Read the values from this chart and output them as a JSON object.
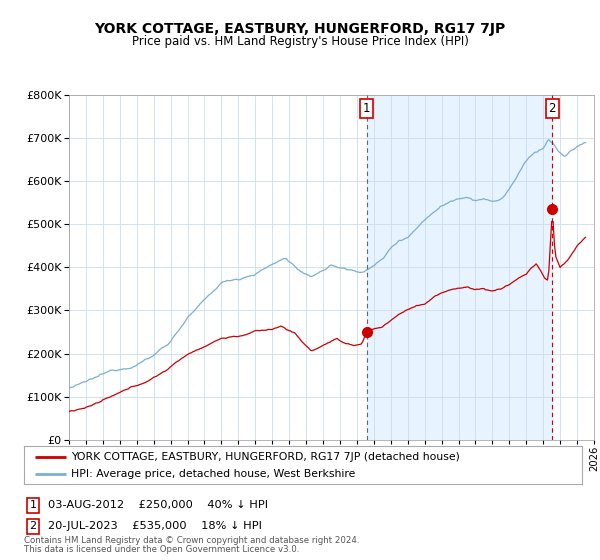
{
  "title": "YORK COTTAGE, EASTBURY, HUNGERFORD, RG17 7JP",
  "subtitle": "Price paid vs. HM Land Registry's House Price Index (HPI)",
  "ylim": [
    0,
    800000
  ],
  "xlim_start": 1995,
  "xlim_end": 2026,
  "hpi_color": "#7bafd4",
  "hpi_fill_color": "#ddeeff",
  "price_color": "#cc0000",
  "marker1_date": 2012.58,
  "marker1_price": 250000,
  "marker2_date": 2023.54,
  "marker2_price": 535000,
  "legend_line1": "YORK COTTAGE, EASTBURY, HUNGERFORD, RG17 7JP (detached house)",
  "legend_line2": "HPI: Average price, detached house, West Berkshire",
  "marker1_text": "03-AUG-2012    £250,000    40% ↓ HPI",
  "marker2_text": "20-JUL-2023    £535,000    18% ↓ HPI",
  "footer1": "Contains HM Land Registry data © Crown copyright and database right 2024.",
  "footer2": "This data is licensed under the Open Government Licence v3.0.",
  "background_color": "#ffffff",
  "grid_color": "#ccddee"
}
